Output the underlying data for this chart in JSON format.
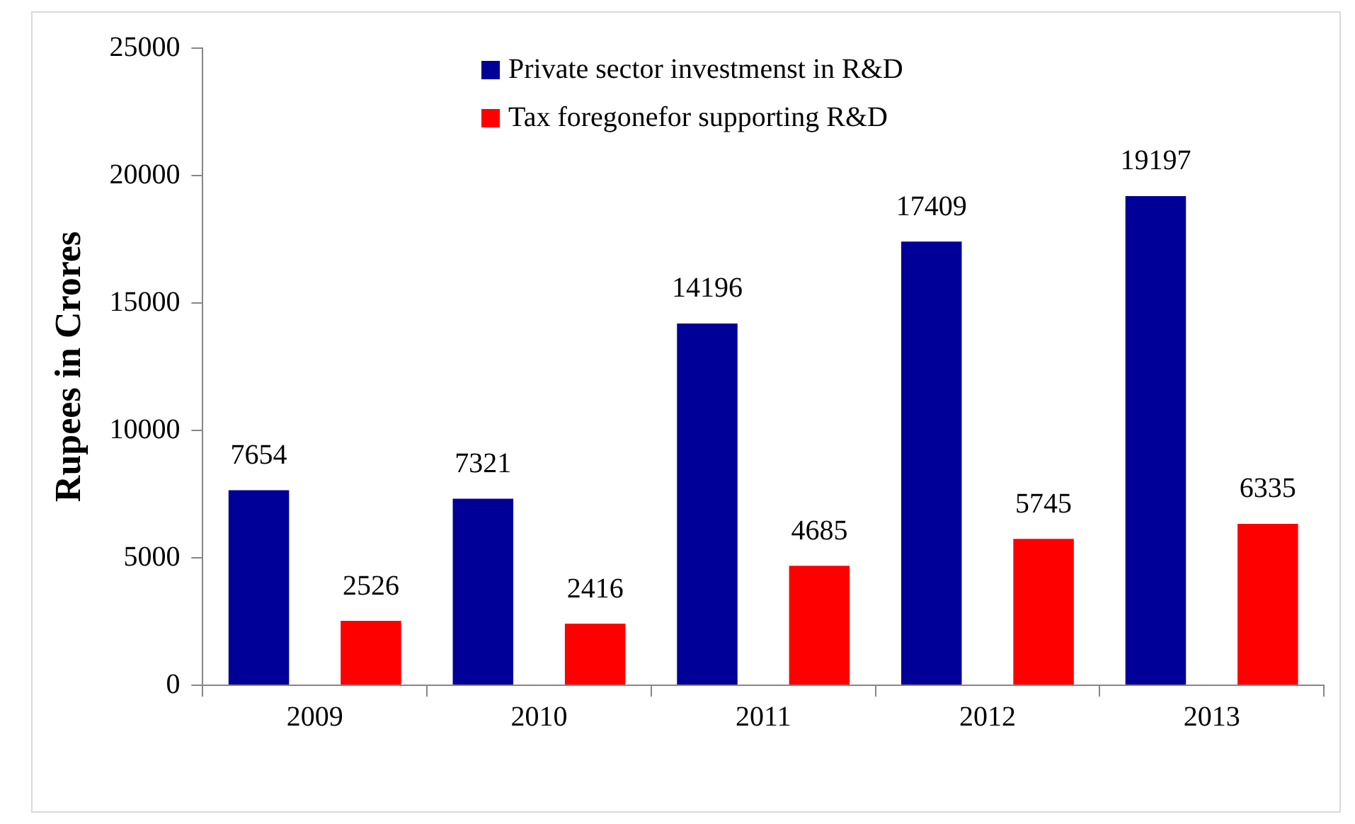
{
  "chart_data": {
    "type": "bar",
    "ylabel": "Rupees in Crores",
    "categories": [
      "2009",
      "2010",
      "2011",
      "2012",
      "2013"
    ],
    "series": [
      {
        "name": "Private sector investmenst in R&D",
        "color": "#000099",
        "values": [
          7654,
          7321,
          14196,
          17409,
          19197
        ]
      },
      {
        "name": "Tax foregonefor supporting R&D",
        "color": "#ff0000",
        "values": [
          2526,
          2416,
          4685,
          5745,
          6335
        ]
      }
    ],
    "ylim": [
      0,
      25000
    ],
    "yticks": [
      0,
      5000,
      10000,
      15000,
      20000,
      25000
    ],
    "grid": false,
    "legend": "top",
    "data_labels": true
  }
}
